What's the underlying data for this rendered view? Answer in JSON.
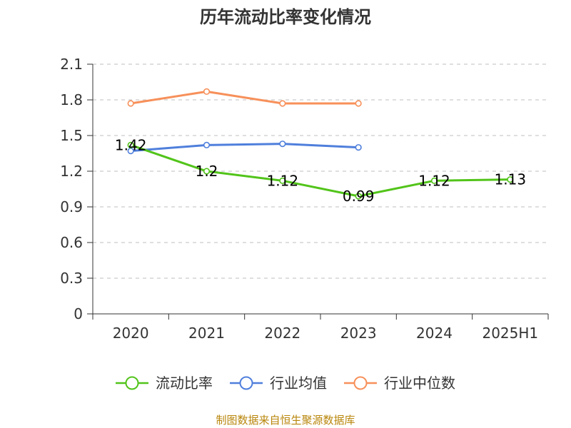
{
  "chart_data": {
    "type": "line",
    "title": "历年流动比率变化情况",
    "xlabel": "",
    "ylabel": "",
    "categories": [
      "2020",
      "2021",
      "2022",
      "2023",
      "2024",
      "2025H1"
    ],
    "ylim": [
      0,
      2.1
    ],
    "yticks": [
      "0",
      "0.3",
      "0.6",
      "0.9",
      "1.2",
      "1.5",
      "1.8",
      "2.1"
    ],
    "grid": true,
    "legend_position": "bottom",
    "series": [
      {
        "name": "流动比率",
        "color": "#52c41a",
        "values": [
          1.42,
          1.2,
          1.12,
          0.99,
          1.12,
          1.13
        ],
        "labels": [
          "1.42",
          "1.2",
          "1.12",
          "0.99",
          "1.12",
          "1.13"
        ]
      },
      {
        "name": "行业均值",
        "color": "#4f7fdc",
        "values": [
          1.37,
          1.42,
          1.43,
          1.4,
          null,
          null
        ]
      },
      {
        "name": "行业中位数",
        "color": "#f7905a",
        "values": [
          1.77,
          1.87,
          1.77,
          1.77,
          null,
          null
        ]
      }
    ]
  },
  "source_text": "制图数据来自恒生聚源数据库"
}
